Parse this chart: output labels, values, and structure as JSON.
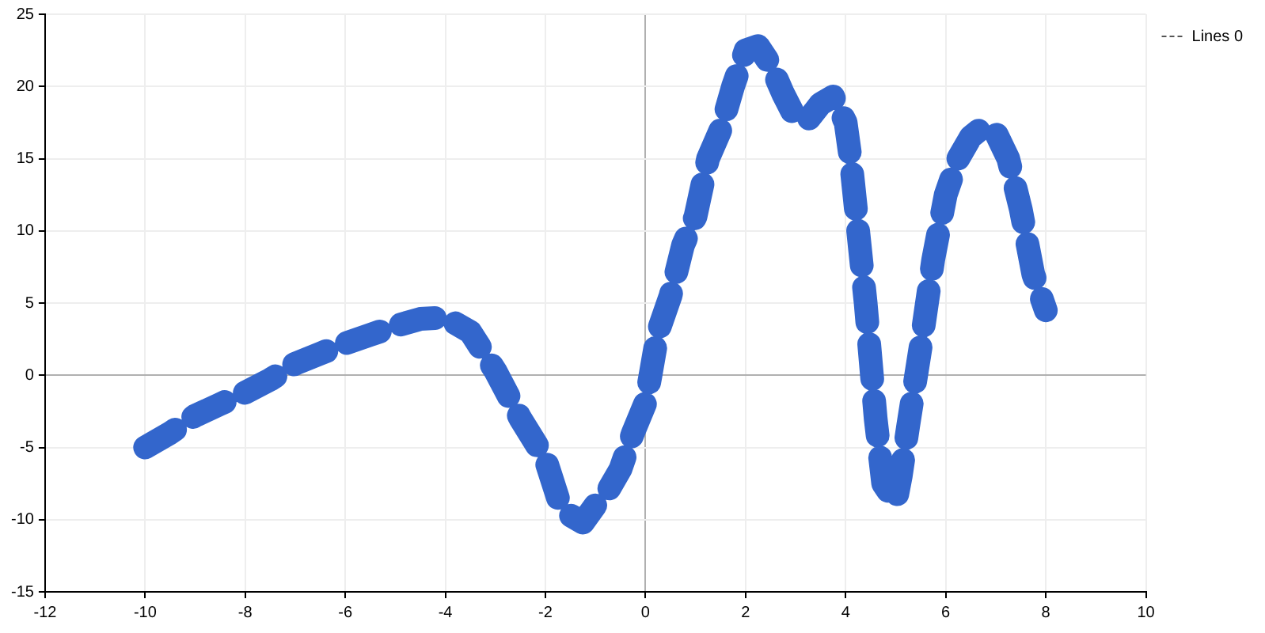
{
  "chart_data": {
    "type": "line",
    "x": [
      -10,
      -9.5,
      -9,
      -8.5,
      -8,
      -7.5,
      -7,
      -6.5,
      -6,
      -5.5,
      -5,
      -4.5,
      -4,
      -3.5,
      -3,
      -2.5,
      -2,
      -1.75,
      -1.5,
      -1.25,
      -1,
      -0.75,
      -0.5,
      -0.25,
      0,
      0.1,
      0.25,
      0.5,
      0.75,
      1,
      1.25,
      1.5,
      1.75,
      2,
      2.25,
      2.5,
      2.75,
      3,
      3.25,
      3.5,
      3.75,
      4,
      4.1,
      4.25,
      4.4,
      4.5,
      4.6,
      4.75,
      5,
      5.1,
      5.25,
      5.5,
      5.75,
      6,
      6.25,
      6.5,
      6.75,
      7,
      7.25,
      7.5,
      7.75,
      8
    ],
    "series": [
      {
        "name": "Lines 0",
        "color": "#3366cc",
        "values": [
          -5,
          -4,
          -2.8,
          -2,
          -1.2,
          -0.3,
          0.8,
          1.5,
          2.2,
          2.8,
          3.4,
          3.9,
          4,
          3,
          0.3,
          -3,
          -5.8,
          -8.5,
          -9.7,
          -10.2,
          -9,
          -8,
          -6.5,
          -4,
          -1.9,
          0,
          3,
          5.5,
          9,
          11,
          15,
          17,
          20,
          22.5,
          22.8,
          21.5,
          19.5,
          17.8,
          17.7,
          18.8,
          19.3,
          17.5,
          15,
          10,
          5,
          1,
          -3,
          -7.5,
          -8.8,
          -7,
          -3.5,
          2,
          8,
          12.5,
          15,
          16.5,
          17.2,
          16.8,
          15,
          11.5,
          7,
          4.5
        ]
      }
    ],
    "xlim": [
      -12,
      10
    ],
    "xticks": [
      -12,
      -10,
      -8,
      -6,
      -4,
      -2,
      0,
      2,
      4,
      6,
      8,
      10
    ],
    "ylim": [
      -15,
      25
    ],
    "yticks": [
      -15,
      -10,
      -5,
      0,
      5,
      10,
      15,
      20,
      25
    ],
    "grid": true,
    "legend": "top right",
    "line_style": "dashed",
    "marker": "none"
  }
}
